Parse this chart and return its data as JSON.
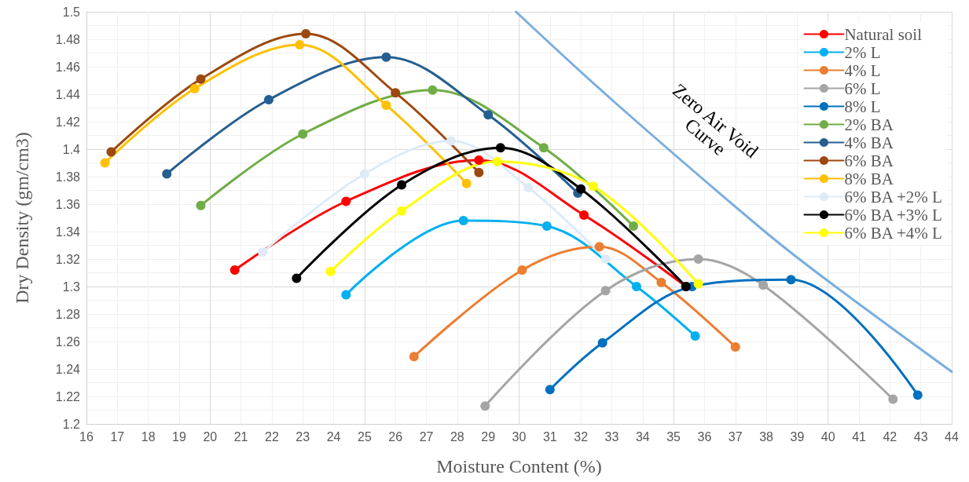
{
  "chart_data": {
    "type": "line",
    "xlabel": "Moisture Content (%)",
    "ylabel": "Dry Density (gm/cm3)",
    "xlim": [
      16,
      44
    ],
    "xticks": [
      16,
      17,
      18,
      19,
      20,
      21,
      22,
      23,
      24,
      25,
      26,
      27,
      28,
      29,
      30,
      31,
      32,
      33,
      34,
      35,
      36,
      37,
      38,
      39,
      40,
      41,
      42,
      43,
      44
    ],
    "ylim": [
      1.2,
      1.5
    ],
    "yticks": [
      1.2,
      1.22,
      1.24,
      1.26,
      1.28,
      1.3,
      1.32,
      1.34,
      1.36,
      1.38,
      1.4,
      1.42,
      1.44,
      1.46,
      1.48,
      1.5
    ],
    "grid": true,
    "legend": "top right",
    "marker": "circle",
    "line_style": "solid",
    "annotations": [
      "Zero Air Void Curve"
    ],
    "series": [
      {
        "name": "Natural soil",
        "color": "#ff0000",
        "x": [
          20.8,
          24.4,
          28.7,
          32.1,
          35.4
        ],
        "values": [
          1.312,
          1.362,
          1.392,
          1.352,
          1.3
        ]
      },
      {
        "name": "2% L",
        "color": "#00b0f0",
        "x": [
          24.4,
          28.2,
          30.9,
          33.8,
          35.7
        ],
        "values": [
          1.294,
          1.348,
          1.344,
          1.3,
          1.264
        ]
      },
      {
        "name": "4% L",
        "color": "#ed7d31",
        "x": [
          26.6,
          30.1,
          32.6,
          34.6,
          37.0
        ],
        "values": [
          1.249,
          1.312,
          1.329,
          1.303,
          1.256
        ]
      },
      {
        "name": "6% L",
        "color": "#a5a5a5",
        "x": [
          28.9,
          32.8,
          35.8,
          37.9,
          42.1
        ],
        "values": [
          1.213,
          1.297,
          1.32,
          1.301,
          1.218
        ]
      },
      {
        "name": "8% L",
        "color": "#0070c0",
        "x": [
          31.0,
          32.7,
          35.6,
          38.8,
          42.9
        ],
        "values": [
          1.225,
          1.259,
          1.3,
          1.305,
          1.221
        ]
      },
      {
        "name": "2% BA",
        "color": "#70ad47",
        "x": [
          19.7,
          23.0,
          27.2,
          30.8,
          33.7
        ],
        "values": [
          1.359,
          1.411,
          1.443,
          1.401,
          1.344
        ]
      },
      {
        "name": "4% BA",
        "color": "#255e91",
        "x": [
          18.6,
          21.9,
          25.7,
          29.0,
          31.9
        ],
        "values": [
          1.382,
          1.436,
          1.467,
          1.425,
          1.368
        ]
      },
      {
        "name": "6% BA",
        "color": "#9e480e",
        "x": [
          16.8,
          19.7,
          23.1,
          26.0,
          28.7
        ],
        "values": [
          1.398,
          1.451,
          1.484,
          1.441,
          1.383
        ]
      },
      {
        "name": "8% BA",
        "color": "#ffc000",
        "x": [
          16.6,
          19.5,
          22.9,
          25.7,
          28.3
        ],
        "values": [
          1.39,
          1.444,
          1.476,
          1.432,
          1.375
        ]
      },
      {
        "name": "6% BA +2% L",
        "color": "#deebf7",
        "x": [
          21.7,
          25.0,
          27.8,
          30.3,
          32.8
        ],
        "values": [
          1.325,
          1.382,
          1.406,
          1.372,
          1.32
        ]
      },
      {
        "name": "6% BA +3% L",
        "color": "#000000",
        "x": [
          22.8,
          26.2,
          29.4,
          32.0,
          35.4
        ],
        "values": [
          1.306,
          1.374,
          1.401,
          1.371,
          1.3
        ]
      },
      {
        "name": "6% BA +4% L",
        "color": "#ffff00",
        "x": [
          23.9,
          26.2,
          29.3,
          32.4,
          35.8
        ],
        "values": [
          1.311,
          1.355,
          1.391,
          1.373,
          1.302
        ]
      },
      {
        "color": "#7aaede",
        "marker": "none",
        "x": [
          29.9,
          33.0,
          37.9,
          40.0,
          44.0
        ],
        "values": [
          1.5,
          1.436,
          1.341,
          1.304,
          1.238
        ]
      }
    ]
  }
}
